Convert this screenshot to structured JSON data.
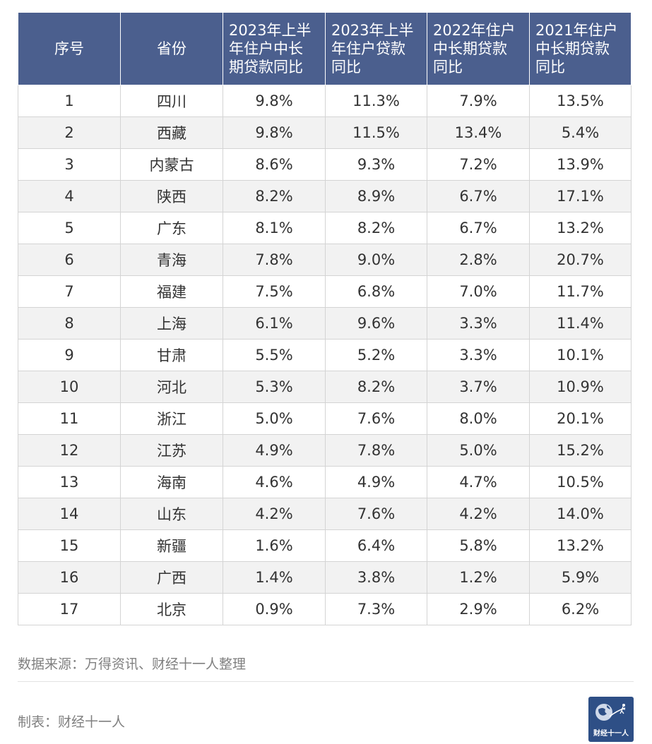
{
  "chart_data": {
    "type": "table",
    "columns": [
      "序号",
      "省份",
      "2023年上半年住户中长期贷款同比",
      "2023年上半年住户贷款同比",
      "2022年住户中长期贷款同比",
      "2021年住户中长期贷款同比"
    ],
    "header_lines": [
      [
        "序号"
      ],
      [
        "省份"
      ],
      [
        "2023年上半",
        "年住户中长",
        "期贷款同比"
      ],
      [
        "2023年上半",
        "年住户贷款",
        "同比"
      ],
      [
        "2022年住户",
        "中长期贷款",
        "同比"
      ],
      [
        "2021年住户",
        "中长期贷款",
        "同比"
      ]
    ],
    "rows": [
      [
        "1",
        "四川",
        "9.8%",
        "11.3%",
        "7.9%",
        "13.5%"
      ],
      [
        "2",
        "西藏",
        "9.8%",
        "11.5%",
        "13.4%",
        "5.4%"
      ],
      [
        "3",
        "内蒙古",
        "8.6%",
        "9.3%",
        "7.2%",
        "13.9%"
      ],
      [
        "4",
        "陕西",
        "8.2%",
        "8.9%",
        "6.7%",
        "17.1%"
      ],
      [
        "5",
        "广东",
        "8.1%",
        "8.2%",
        "6.7%",
        "13.2%"
      ],
      [
        "6",
        "青海",
        "7.8%",
        "9.0%",
        "2.8%",
        "20.7%"
      ],
      [
        "7",
        "福建",
        "7.5%",
        "6.8%",
        "7.0%",
        "11.7%"
      ],
      [
        "8",
        "上海",
        "6.1%",
        "9.6%",
        "3.3%",
        "11.4%"
      ],
      [
        "9",
        "甘肃",
        "5.5%",
        "5.2%",
        "3.3%",
        "10.1%"
      ],
      [
        "10",
        "河北",
        "5.3%",
        "8.2%",
        "3.7%",
        "10.9%"
      ],
      [
        "11",
        "浙江",
        "5.0%",
        "7.6%",
        "8.0%",
        "20.1%"
      ],
      [
        "12",
        "江苏",
        "4.9%",
        "7.8%",
        "5.0%",
        "15.2%"
      ],
      [
        "13",
        "海南",
        "4.6%",
        "4.9%",
        "4.7%",
        "10.5%"
      ],
      [
        "14",
        "山东",
        "4.2%",
        "7.6%",
        "4.2%",
        "14.0%"
      ],
      [
        "15",
        "新疆",
        "1.6%",
        "6.4%",
        "5.8%",
        "13.2%"
      ],
      [
        "16",
        "广西",
        "1.4%",
        "3.8%",
        "1.2%",
        "5.9%"
      ],
      [
        "17",
        "北京",
        "0.9%",
        "7.3%",
        "2.9%",
        "6.2%"
      ]
    ]
  },
  "footer": {
    "source": "数据来源：万得资讯、财经十一人整理",
    "maker": "制表：财经十一人",
    "logo_text": "财经十一人"
  },
  "colors": {
    "header_bg": "#4b5f8e",
    "stripe_bg": "#f2f2f2",
    "logo_bg": "#2e4f86"
  }
}
